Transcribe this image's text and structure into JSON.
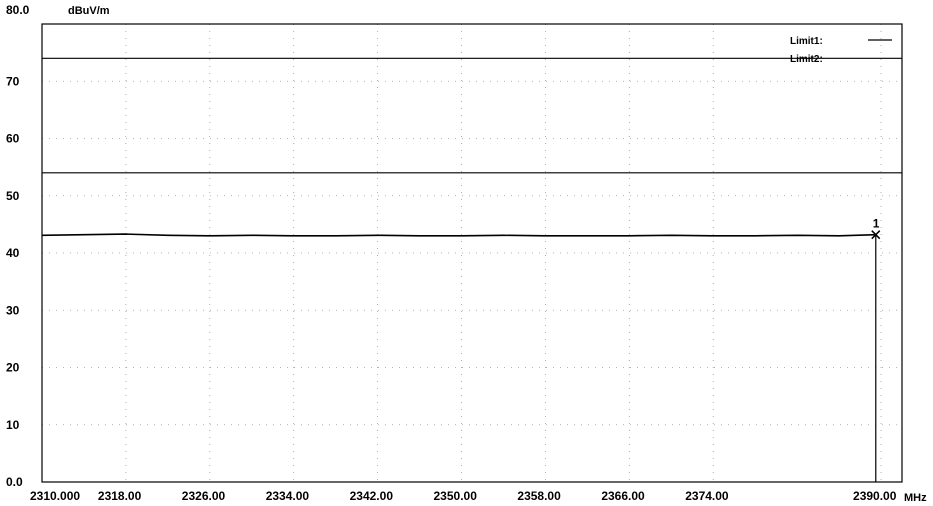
{
  "chart_data": {
    "type": "line",
    "ylabel": "dBuV/m",
    "xlabel": "MHz",
    "ylim": [
      0,
      80
    ],
    "xlim": [
      2310,
      2392
    ],
    "y_ticks": [
      0,
      10,
      20,
      30,
      40,
      50,
      60,
      70,
      80
    ],
    "y_tick_labels": [
      "0.0",
      "10",
      "20",
      "30",
      "40",
      "50",
      "60",
      "70",
      "80.0"
    ],
    "x_ticks": [
      2310,
      2318,
      2326,
      2334,
      2342,
      2350,
      2358,
      2366,
      2374,
      2390
    ],
    "x_tick_labels": [
      "2310.000",
      "2318.00",
      "2326.00",
      "2334.00",
      "2342.00",
      "2350.00",
      "2358.00",
      "2366.00",
      "2374.00",
      "2390.00"
    ],
    "grid": true,
    "legend": {
      "placement": "top-right",
      "entries": [
        "Limit1:",
        "Limit2:"
      ]
    },
    "series": [
      {
        "name": "Limit1:",
        "x": [
          2310,
          2392
        ],
        "values": [
          74,
          74
        ],
        "color": "#000000"
      },
      {
        "name": "Limit2:",
        "x": [
          2310,
          2392
        ],
        "values": [
          54,
          54
        ],
        "color": "#000000"
      },
      {
        "x": [
          2310,
          2314,
          2318,
          2322,
          2326,
          2330,
          2334,
          2338,
          2342,
          2346,
          2350,
          2354,
          2358,
          2362,
          2366,
          2370,
          2374,
          2378,
          2382,
          2386,
          2389.5
        ],
        "values": [
          43.1,
          43.2,
          43.3,
          43.1,
          43.0,
          43.1,
          43.0,
          43.0,
          43.1,
          43.0,
          43.0,
          43.1,
          43.0,
          43.0,
          43.0,
          43.1,
          43.0,
          43.0,
          43.1,
          43.0,
          43.2
        ],
        "color": "#000000"
      }
    ],
    "markers": [
      {
        "label": "1",
        "x": 2389.5,
        "y": 43.2
      }
    ]
  }
}
